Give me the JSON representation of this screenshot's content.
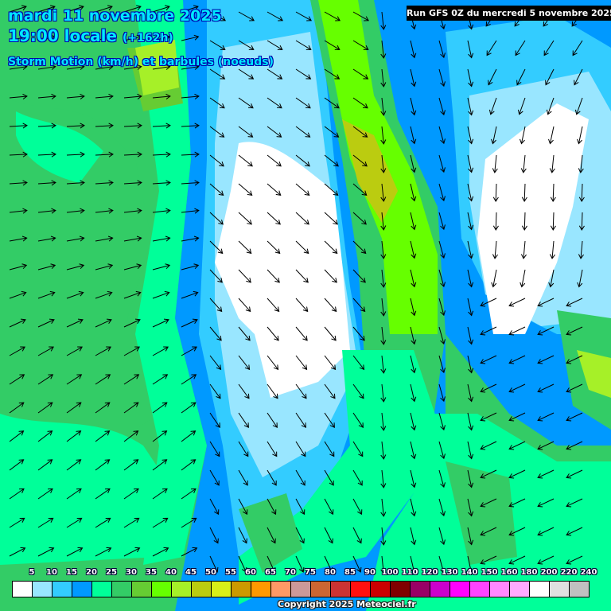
{
  "header": {
    "date": "mardi 11 novembre 2025",
    "time": "19:00 locale",
    "offset": "(+162h)",
    "parameter": "Storm Motion (km/h) et barbules (noeuds)",
    "run": "Run GFS 0Z du mercredi 5 novembre 2025"
  },
  "legend": {
    "labels": [
      "5",
      "10",
      "15",
      "20",
      "25",
      "30",
      "35",
      "40",
      "45",
      "50",
      "55",
      "60",
      "65",
      "70",
      "75",
      "80",
      "85",
      "90",
      "100",
      "110",
      "120",
      "130",
      "140",
      "150",
      "160",
      "180",
      "200",
      "220",
      "240"
    ],
    "colors": [
      "#ffffff",
      "#99e6ff",
      "#33ccff",
      "#0099ff",
      "#00ff99",
      "#33cc66",
      "#66cc33",
      "#66ff00",
      "#a6f028",
      "#bbcc10",
      "#d8f018",
      "#cc9900",
      "#ff9900",
      "#ff9966",
      "#cc9999",
      "#cc6633",
      "#cc3333",
      "#ff1010",
      "#cc0000",
      "#800000",
      "#990066",
      "#cc00cc",
      "#ff00ff",
      "#ff44ff",
      "#ff88ff",
      "#ffaaff",
      "#ffffff",
      "#e0e0e0",
      "#c0c0c0"
    ]
  },
  "footer": {
    "copyright": "Copyright 2025 Meteociel.fr"
  }
}
